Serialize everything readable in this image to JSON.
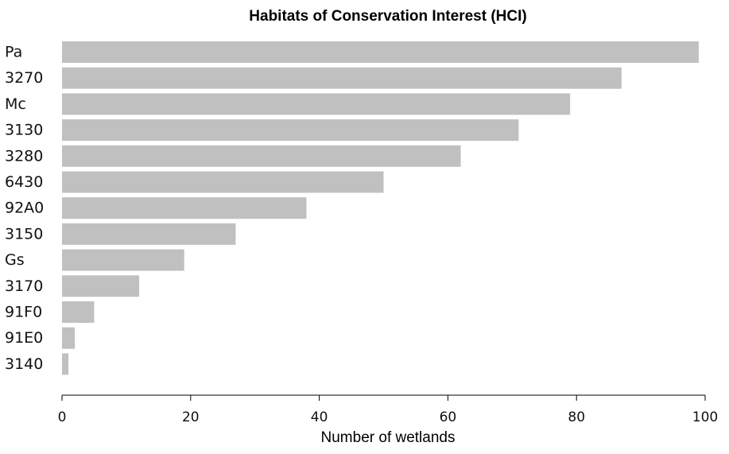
{
  "chart_data": {
    "type": "bar",
    "orientation": "horizontal",
    "title": "Habitats of Conservation Interest (HCI)",
    "xlabel": "Number of wetlands",
    "ylabel": "",
    "categories": [
      "Pa",
      "3270",
      "Mc",
      "3130",
      "3280",
      "6430",
      "92A0",
      "3150",
      "Gs",
      "3170",
      "91F0",
      "91E0",
      "3140"
    ],
    "values": [
      99,
      87,
      79,
      71,
      62,
      50,
      38,
      27,
      19,
      12,
      5,
      2,
      1
    ],
    "xlim": [
      0,
      100
    ],
    "xticks": [
      0,
      20,
      40,
      60,
      80,
      100
    ],
    "bar_color": "#c0c0c0",
    "grid": false,
    "legend": "none"
  }
}
